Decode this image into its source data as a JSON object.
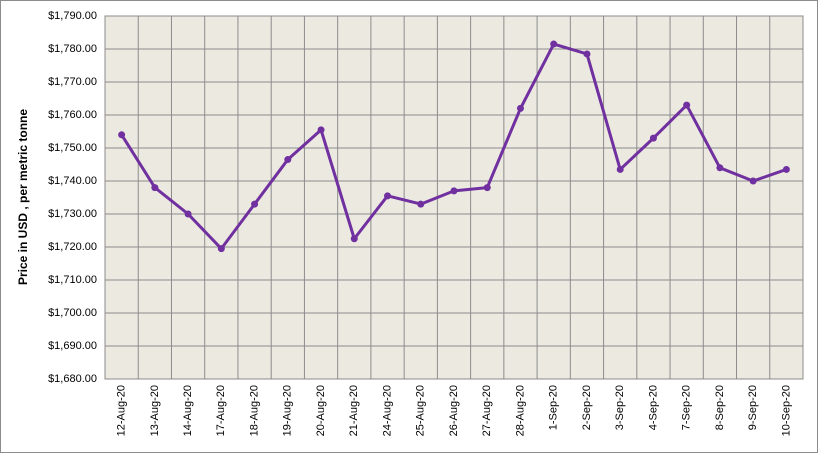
{
  "chart_data": {
    "type": "line",
    "y_label": "Price in USD , per metric tonne",
    "categories": [
      "12-Aug-20",
      "13-Aug-20",
      "14-Aug-20",
      "17-Aug-20",
      "18-Aug-20",
      "19-Aug-20",
      "20-Aug-20",
      "21-Aug-20",
      "24-Aug-20",
      "25-Aug-20",
      "26-Aug-20",
      "27-Aug-20",
      "28-Aug-20",
      "1-Sep-20",
      "2-Sep-20",
      "3-Sep-20",
      "4-Sep-20",
      "7-Sep-20",
      "8-Sep-20",
      "9-Sep-20",
      "10-Sep-20"
    ],
    "values": [
      1754,
      1738,
      1730,
      1719.5,
      1733,
      1746.5,
      1755.5,
      1722.5,
      1735.5,
      1733,
      1737,
      1738,
      1762,
      1781.5,
      1778.5,
      1743.5,
      1753,
      1763,
      1744,
      1740,
      1743.5
    ],
    "color": "#7030a0",
    "ylim": [
      1680,
      1790
    ],
    "yticks": [
      {
        "value": 1680,
        "label": "$1,680.00"
      },
      {
        "value": 1690,
        "label": "$1,690.00"
      },
      {
        "value": 1700,
        "label": "$1,700.00"
      },
      {
        "value": 1710,
        "label": "$1,710.00"
      },
      {
        "value": 1720,
        "label": "$1,720.00"
      },
      {
        "value": 1730,
        "label": "$1,730.00"
      },
      {
        "value": 1740,
        "label": "$1,740.00"
      },
      {
        "value": 1750,
        "label": "$1,750.00"
      },
      {
        "value": 1760,
        "label": "$1,760.00"
      },
      {
        "value": 1770,
        "label": "$1,770.00"
      },
      {
        "value": 1780,
        "label": "$1,780.00"
      },
      {
        "value": 1790,
        "label": "$1,790.00"
      }
    ],
    "grid": true
  }
}
